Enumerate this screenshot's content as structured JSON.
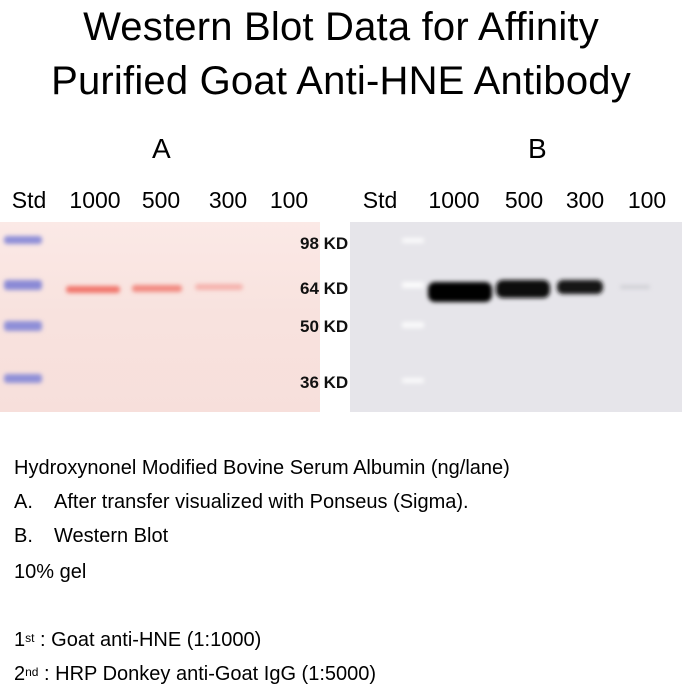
{
  "title": {
    "line1": "Western Blot Data for Affinity",
    "line2": "Purified Goat Anti-HNE Antibody"
  },
  "panels": {
    "a": {
      "label": "A",
      "lanes": [
        "Std",
        "1000",
        "500",
        "300",
        "100"
      ],
      "band_strength": [
        0,
        0.8,
        0.65,
        0.35,
        0.0
      ]
    },
    "b": {
      "label": "B",
      "lanes": [
        "Std",
        "1000",
        "500",
        "300",
        "100"
      ],
      "band_strength": [
        0,
        1.0,
        0.95,
        0.75,
        0.05
      ]
    }
  },
  "markers": [
    "98 KD",
    "64 KD",
    "50 KD",
    "36 KD"
  ],
  "caption": {
    "line1": "Hydroxynonel Modified Bovine Serum Albumin (ng/lane)",
    "a_idx": "A.",
    "a_text": "After transfer visualized with Ponseus (Sigma).",
    "b_idx": "B.",
    "b_text": "Western Blot",
    "gel": "10% gel",
    "first_num": "1",
    "first_sup": "st",
    "first_text": " : Goat anti-HNE (1:1000)",
    "second_num": "2",
    "second_sup": "nd",
    "second_text": " : HRP Donkey anti-Goat IgG (1:5000)"
  },
  "colors": {
    "ponceau_band": "#f07a70",
    "std_marker_a": "#8f8fd8",
    "western_band": "#050505",
    "std_marker_b": "#ffffff"
  }
}
